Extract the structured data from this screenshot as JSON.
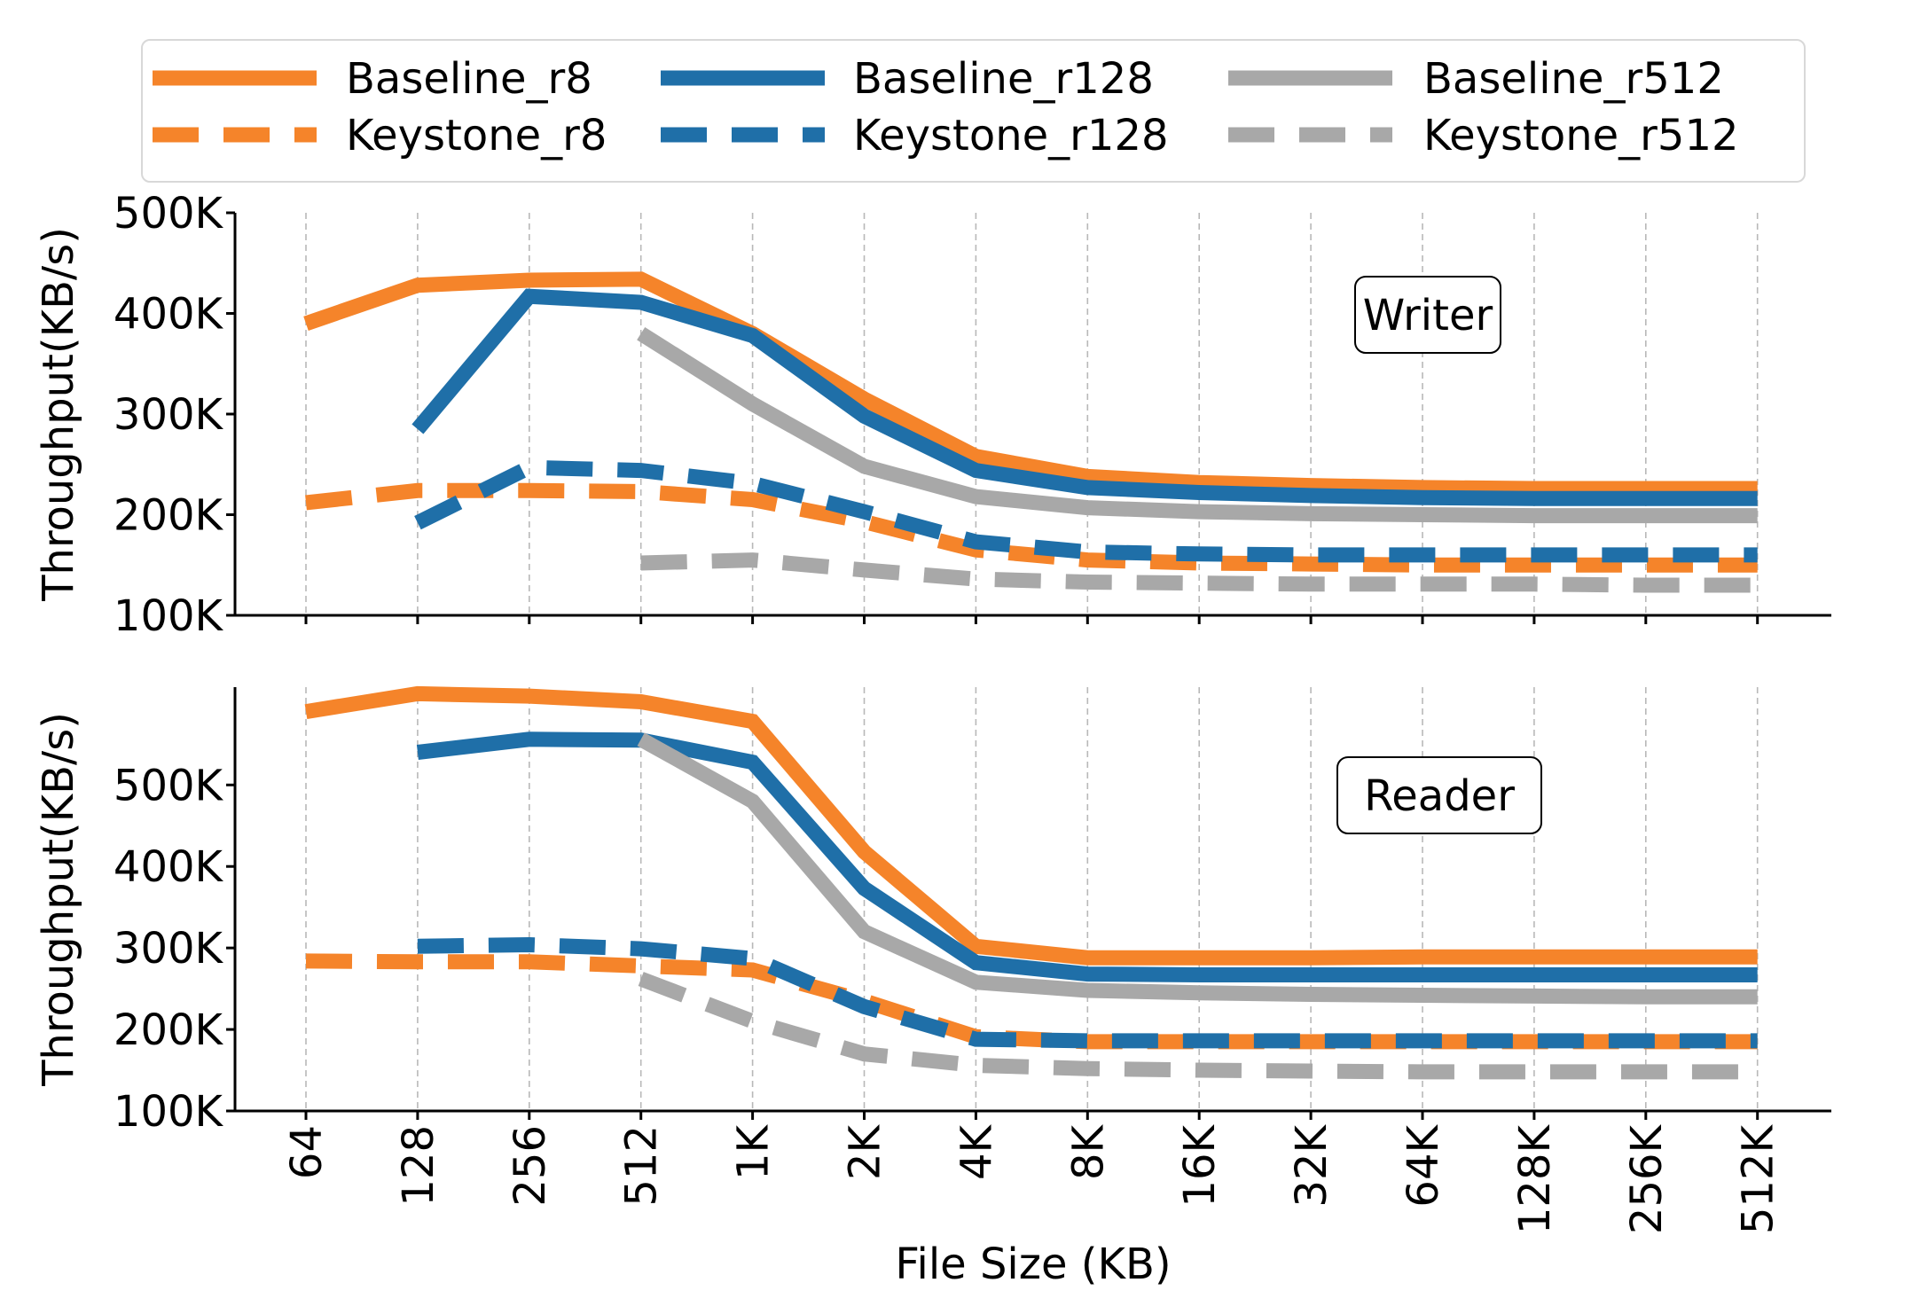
{
  "chart_data": [
    {
      "panel": "Writer",
      "type": "line",
      "title": "",
      "annotation": "Writer",
      "xlabel": "",
      "ylabel": "Throughput(KB/s)",
      "categories": [
        "64",
        "128",
        "256",
        "512",
        "1K",
        "2K",
        "4K",
        "8K",
        "16K",
        "32K",
        "64K",
        "128K",
        "256K",
        "512K"
      ],
      "ylim": [
        100000,
        500000
      ],
      "yticks": [
        100000,
        200000,
        300000,
        400000,
        500000
      ],
      "ytick_labels": [
        "100K",
        "200K",
        "300K",
        "400K",
        "500K"
      ],
      "grid": "vertical-dashed",
      "series": [
        {
          "name": "Baseline_r8",
          "color": "#f5842a",
          "dash": "solid",
          "values": [
            390000,
            428000,
            433000,
            434000,
            380000,
            315000,
            258000,
            238000,
            232000,
            229000,
            227000,
            226000,
            226000,
            226000
          ]
        },
        {
          "name": "Baseline_r128",
          "color": "#1f6fa8",
          "dash": "solid",
          "values": [
            null,
            285000,
            417000,
            411000,
            378000,
            298000,
            244000,
            227000,
            222000,
            219000,
            217000,
            216000,
            216000,
            216000
          ]
        },
        {
          "name": "Baseline_r512",
          "color": "#a8a8a8",
          "dash": "solid",
          "values": [
            null,
            null,
            null,
            380000,
            310000,
            248000,
            218000,
            207000,
            203000,
            201000,
            200000,
            199000,
            199000,
            199000
          ]
        },
        {
          "name": "Keystone_r8",
          "color": "#f5842a",
          "dash": "dashed",
          "values": [
            212000,
            224000,
            224000,
            223000,
            215000,
            193000,
            165000,
            155000,
            152000,
            151000,
            150000,
            150000,
            150000,
            150000
          ]
        },
        {
          "name": "Keystone_r128",
          "color": "#1f6fa8",
          "dash": "dashed",
          "values": [
            null,
            192000,
            247000,
            244000,
            231000,
            203000,
            173000,
            163000,
            161000,
            160000,
            160000,
            160000,
            160000,
            160000
          ]
        },
        {
          "name": "Keystone_r512",
          "color": "#a8a8a8",
          "dash": "dashed",
          "values": [
            null,
            null,
            null,
            152000,
            155000,
            145000,
            136000,
            133000,
            132000,
            131000,
            131000,
            131000,
            130000,
            130000
          ]
        }
      ]
    },
    {
      "panel": "Reader",
      "type": "line",
      "title": "",
      "annotation": "Reader",
      "xlabel": "File Size (KB)",
      "ylabel": "Throughput(KB/s)",
      "categories": [
        "64",
        "128",
        "256",
        "512",
        "1K",
        "2K",
        "4K",
        "8K",
        "16K",
        "32K",
        "64K",
        "128K",
        "256K",
        "512K"
      ],
      "ylim": [
        100000,
        620000
      ],
      "yticks": [
        100000,
        200000,
        300000,
        400000,
        500000
      ],
      "ytick_labels": [
        "100K",
        "200K",
        "300K",
        "400K",
        "500K"
      ],
      "grid": "vertical-dashed",
      "series": [
        {
          "name": "Baseline_r8",
          "color": "#f5842a",
          "dash": "solid",
          "values": [
            590000,
            612000,
            609000,
            602000,
            578000,
            418000,
            302000,
            288000,
            288000,
            288000,
            289000,
            289000,
            289000,
            289000
          ]
        },
        {
          "name": "Baseline_r128",
          "color": "#1f6fa8",
          "dash": "solid",
          "values": [
            null,
            540000,
            556000,
            555000,
            528000,
            373000,
            282000,
            268000,
            267000,
            267000,
            267000,
            267000,
            267000,
            267000
          ]
        },
        {
          "name": "Baseline_r512",
          "color": "#a8a8a8",
          "dash": "solid",
          "values": [
            null,
            null,
            null,
            556000,
            480000,
            320000,
            258000,
            248000,
            245000,
            243000,
            242000,
            241000,
            240000,
            240000
          ]
        },
        {
          "name": "Keystone_r8",
          "color": "#f5842a",
          "dash": "dashed",
          "values": [
            284000,
            283000,
            283000,
            278000,
            273000,
            235000,
            191000,
            185000,
            185000,
            185000,
            185000,
            185000,
            185000,
            185000
          ]
        },
        {
          "name": "Keystone_r128",
          "color": "#1f6fa8",
          "dash": "dashed",
          "values": [
            null,
            302000,
            304000,
            299000,
            287000,
            228000,
            188000,
            186000,
            186000,
            186000,
            186000,
            186000,
            186000,
            186000
          ]
        },
        {
          "name": "Keystone_r512",
          "color": "#a8a8a8",
          "dash": "dashed",
          "values": [
            null,
            null,
            null,
            262000,
            210000,
            170000,
            156000,
            152000,
            150000,
            149000,
            148000,
            148000,
            148000,
            148000
          ]
        }
      ]
    }
  ],
  "legend": {
    "placement": "top",
    "entries": [
      {
        "label": "Baseline_r8",
        "color": "#f5842a",
        "dash": "solid"
      },
      {
        "label": "Baseline_r128",
        "color": "#1f6fa8",
        "dash": "solid"
      },
      {
        "label": "Baseline_r512",
        "color": "#a8a8a8",
        "dash": "solid"
      },
      {
        "label": "Keystone_r8",
        "color": "#f5842a",
        "dash": "dashed"
      },
      {
        "label": "Keystone_r128",
        "color": "#1f6fa8",
        "dash": "dashed"
      },
      {
        "label": "Keystone_r512",
        "color": "#a8a8a8",
        "dash": "dashed"
      }
    ]
  }
}
